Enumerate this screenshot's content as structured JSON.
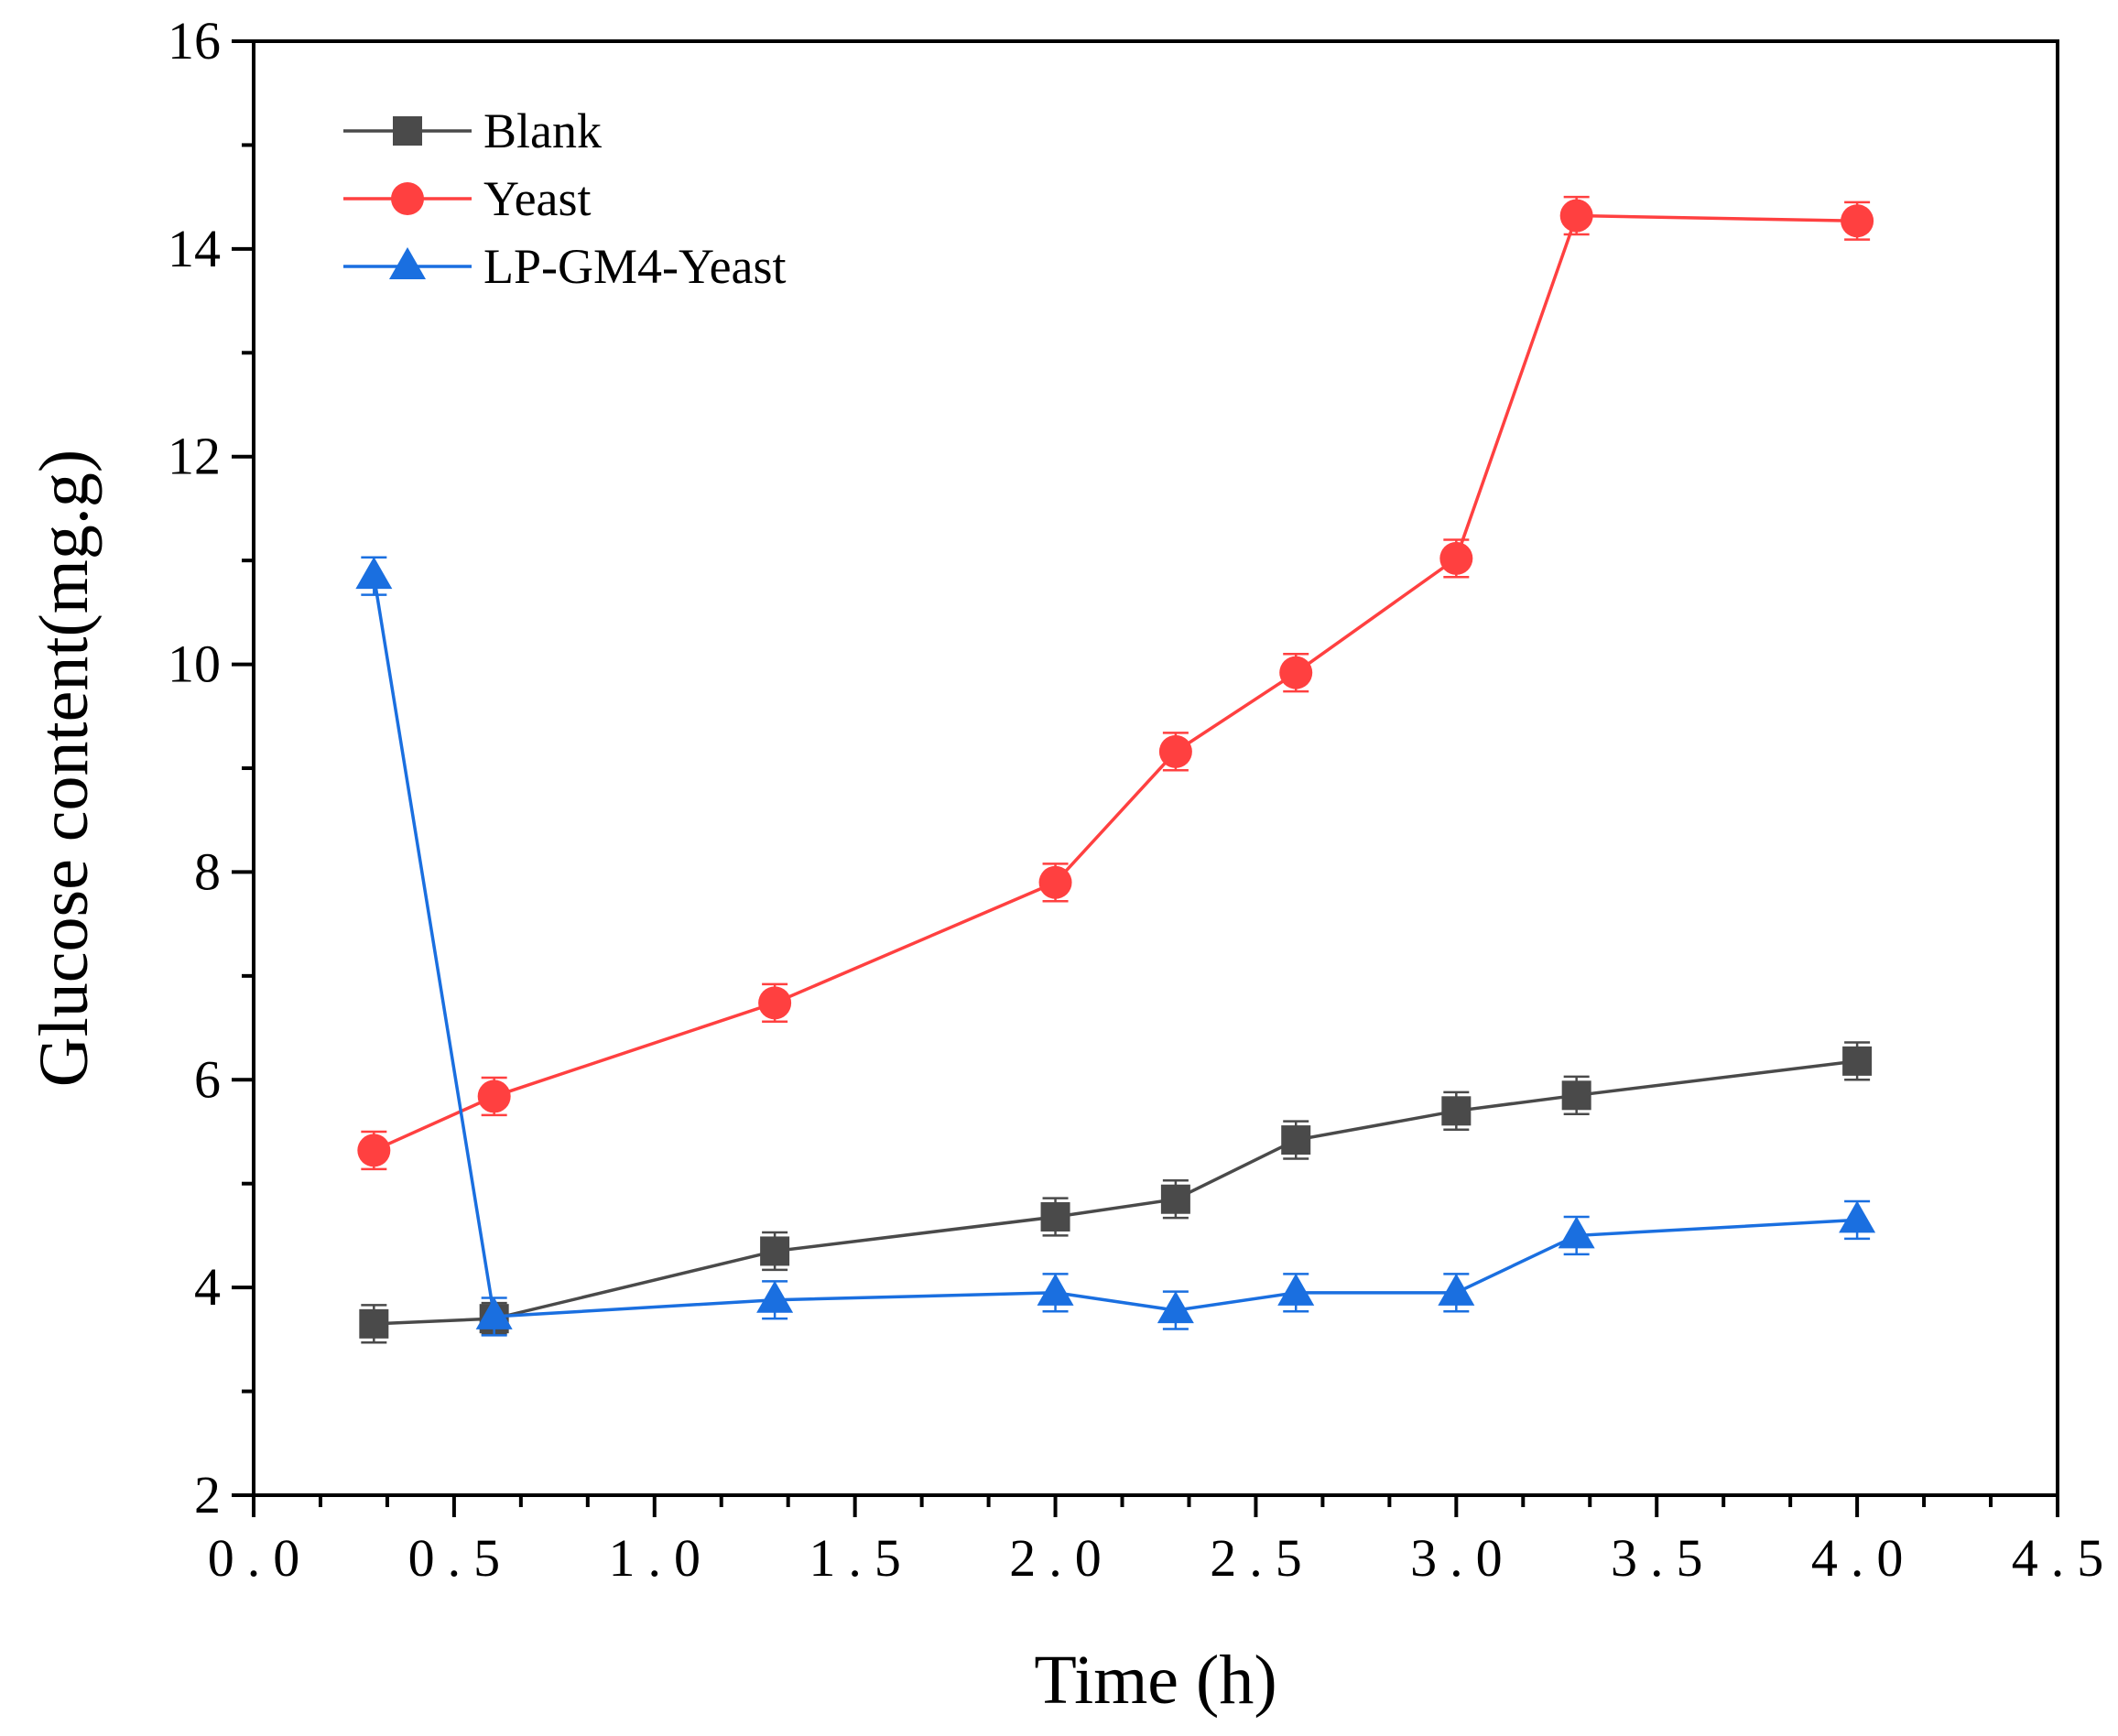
{
  "chart_data": {
    "type": "line",
    "title": "",
    "xlabel": "Time (h)",
    "ylabel": "Glucose content(mg.g)",
    "xlim": [
      0.0,
      4.5
    ],
    "ylim": [
      2,
      16
    ],
    "x_ticks": [
      0.0,
      0.5,
      1.0,
      1.5,
      2.0,
      2.5,
      3.0,
      3.5,
      4.0,
      4.5
    ],
    "x_tick_labels": [
      "0.0",
      "0.5",
      "1.0",
      "1.5",
      "2.0",
      "2.5",
      "3.0",
      "3.5",
      "4.0",
      "4.5"
    ],
    "y_ticks": [
      2,
      4,
      6,
      8,
      10,
      12,
      14,
      16
    ],
    "y_tick_labels": [
      "2",
      "4",
      "6",
      "8",
      "10",
      "12",
      "14",
      "16"
    ],
    "grid": false,
    "legend_position": "top-left",
    "x": [
      0.3,
      0.6,
      1.3,
      2.0,
      2.3,
      2.6,
      3.0,
      3.3,
      4.0
    ],
    "series": [
      {
        "name": "Blank",
        "marker": "square",
        "color": "#4a4a4a",
        "values": [
          3.65,
          3.7,
          4.35,
          4.68,
          4.85,
          5.42,
          5.7,
          5.85,
          6.18
        ],
        "errors": [
          0.18,
          0.15,
          0.18,
          0.18,
          0.18,
          0.18,
          0.18,
          0.18,
          0.18
        ]
      },
      {
        "name": "Yeast",
        "marker": "circle",
        "color": "#ff4040",
        "values": [
          5.32,
          5.84,
          6.74,
          7.9,
          9.16,
          9.92,
          11.02,
          14.32,
          14.27
        ],
        "errors": [
          0.18,
          0.18,
          0.18,
          0.18,
          0.18,
          0.18,
          0.18,
          0.18,
          0.18
        ]
      },
      {
        "name": "LP-GM4-Yeast",
        "marker": "triangle",
        "color": "#1a6fe0",
        "values": [
          10.85,
          3.72,
          3.88,
          3.95,
          3.78,
          3.95,
          3.95,
          4.5,
          4.65
        ],
        "errors": [
          0.18,
          0.18,
          0.18,
          0.18,
          0.18,
          0.18,
          0.18,
          0.18,
          0.18
        ]
      }
    ]
  }
}
